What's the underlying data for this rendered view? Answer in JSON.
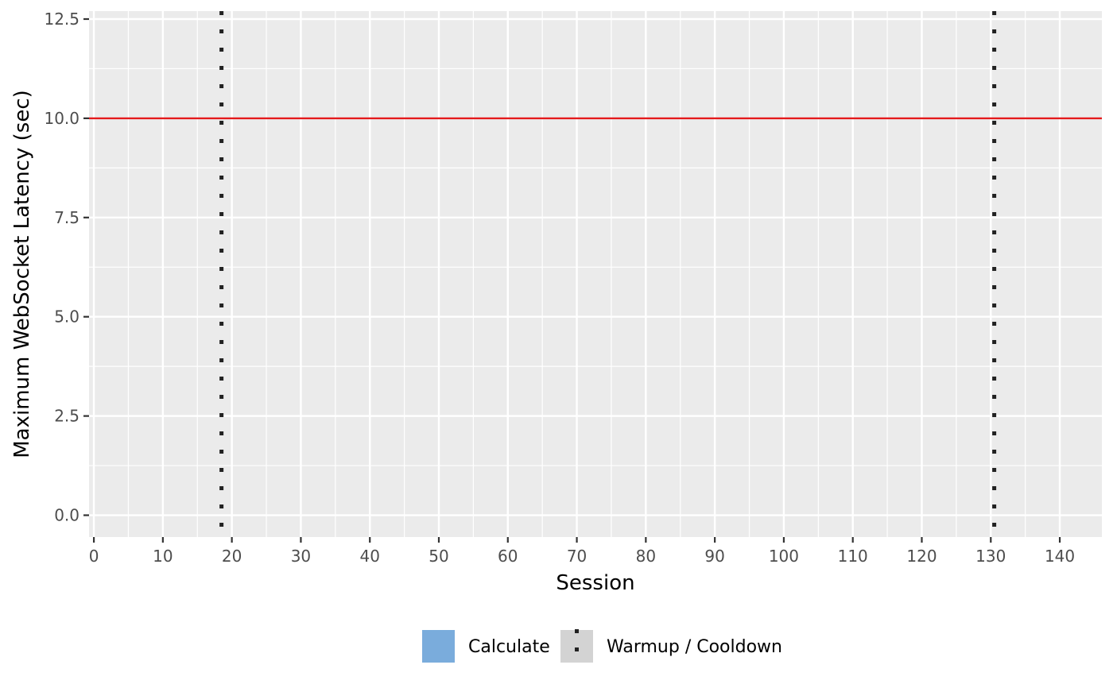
{
  "chart_data": {
    "type": "line",
    "title": "",
    "xlabel": "Session",
    "ylabel": "Maximum WebSocket Latency (sec)",
    "xlim": [
      -0.7,
      146.1
    ],
    "ylim": [
      -0.55,
      12.7
    ],
    "x_ticks": [
      0,
      10,
      20,
      30,
      40,
      50,
      60,
      70,
      80,
      90,
      100,
      110,
      120,
      130,
      140
    ],
    "x_tick_labels": [
      "0",
      "10",
      "20",
      "30",
      "40",
      "50",
      "60",
      "70",
      "80",
      "90",
      "100",
      "110",
      "120",
      "130",
      "140"
    ],
    "y_ticks": [
      0,
      2.5,
      5,
      7.5,
      10,
      12.5
    ],
    "y_tick_labels": [
      "0.0",
      "2.5",
      "5.0",
      "7.5",
      "10.0",
      "12.5"
    ],
    "grid": true,
    "panel_background": "#ebebeb",
    "grid_color": "#ffffff",
    "series": [
      {
        "name": "Calculate",
        "type": "bar",
        "color": "#7aacdc",
        "values": []
      }
    ],
    "reference_lines": [
      {
        "orientation": "horizontal",
        "y": 10,
        "color": "#e41a1c",
        "style": "solid"
      },
      {
        "orientation": "vertical",
        "x": 18.5,
        "color": "#222222",
        "style": "dotted",
        "legend": "Warmup / Cooldown"
      },
      {
        "orientation": "vertical",
        "x": 130.5,
        "color": "#222222",
        "style": "dotted",
        "legend": "Warmup / Cooldown"
      }
    ],
    "legend": {
      "position": "bottom",
      "items": [
        {
          "label": "Calculate",
          "kind": "fill",
          "color": "#7aacdc"
        },
        {
          "label": "Warmup / Cooldown",
          "kind": "dotted-line",
          "color": "#222222",
          "key_background": "#d3d3d3"
        }
      ]
    }
  }
}
